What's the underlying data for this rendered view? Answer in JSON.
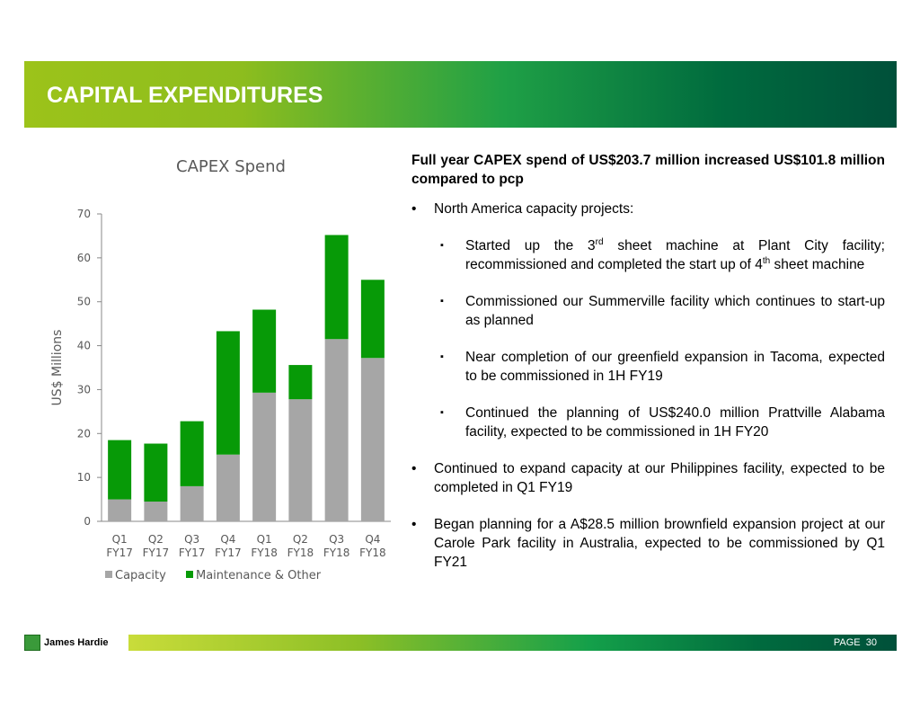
{
  "header": {
    "title": "CAPITAL EXPENDITURES"
  },
  "chart_data": {
    "type": "bar",
    "stacked": true,
    "title": "CAPEX Spend",
    "y_label": "US$ Millions",
    "categories": [
      "Q1 FY17",
      "Q2 FY17",
      "Q3 FY17",
      "Q4 FY17",
      "Q1 FY18",
      "Q2 FY18",
      "Q3 FY18",
      "Q4 FY18"
    ],
    "series": [
      {
        "name": "Capacity",
        "color": "#a6a6a6",
        "values": [
          5.0,
          4.5,
          8.0,
          15.2,
          29.3,
          27.8,
          41.5,
          37.2
        ]
      },
      {
        "name": "Maintenance & Other",
        "color": "#079a07",
        "values": [
          13.5,
          13.2,
          14.8,
          28.1,
          18.9,
          7.8,
          23.7,
          17.8
        ]
      }
    ],
    "ylim": [
      0,
      70
    ],
    "yticks": [
      0,
      10,
      20,
      30,
      40,
      50,
      60,
      70
    ],
    "legend": "bottom-left"
  },
  "body": {
    "heading": "Full year CAPEX spend of US$203.7 million increased US$101.8 million compared to pcp",
    "items": [
      {
        "text": "North America capacity projects:",
        "subitems": [
          [
            "Started up the 3",
            "rd",
            " sheet machine at Plant City facility; recommissioned and completed the start up of 4",
            "th",
            " sheet machine"
          ],
          [
            "Commissioned our Summerville facility which continues to start-up as planned"
          ],
          [
            "Near completion of our greenfield expansion in Tacoma, expected to be commissioned in 1H FY19"
          ],
          [
            "Continued the planning of US$240.0 million Prattville Alabama facility, expected to be commissioned in  1H FY20"
          ]
        ]
      },
      {
        "text": "Continued to expand capacity at our Philippines facility, expected to be completed in Q1 FY19"
      },
      {
        "text": "Began planning for a A$28.5 million brownfield expansion project at our Carole Park facility in Australia, expected to be commissioned by Q1 FY21"
      }
    ]
  },
  "footer": {
    "logo": "James Hardie",
    "page_label": "PAGE",
    "page_number": "30"
  }
}
